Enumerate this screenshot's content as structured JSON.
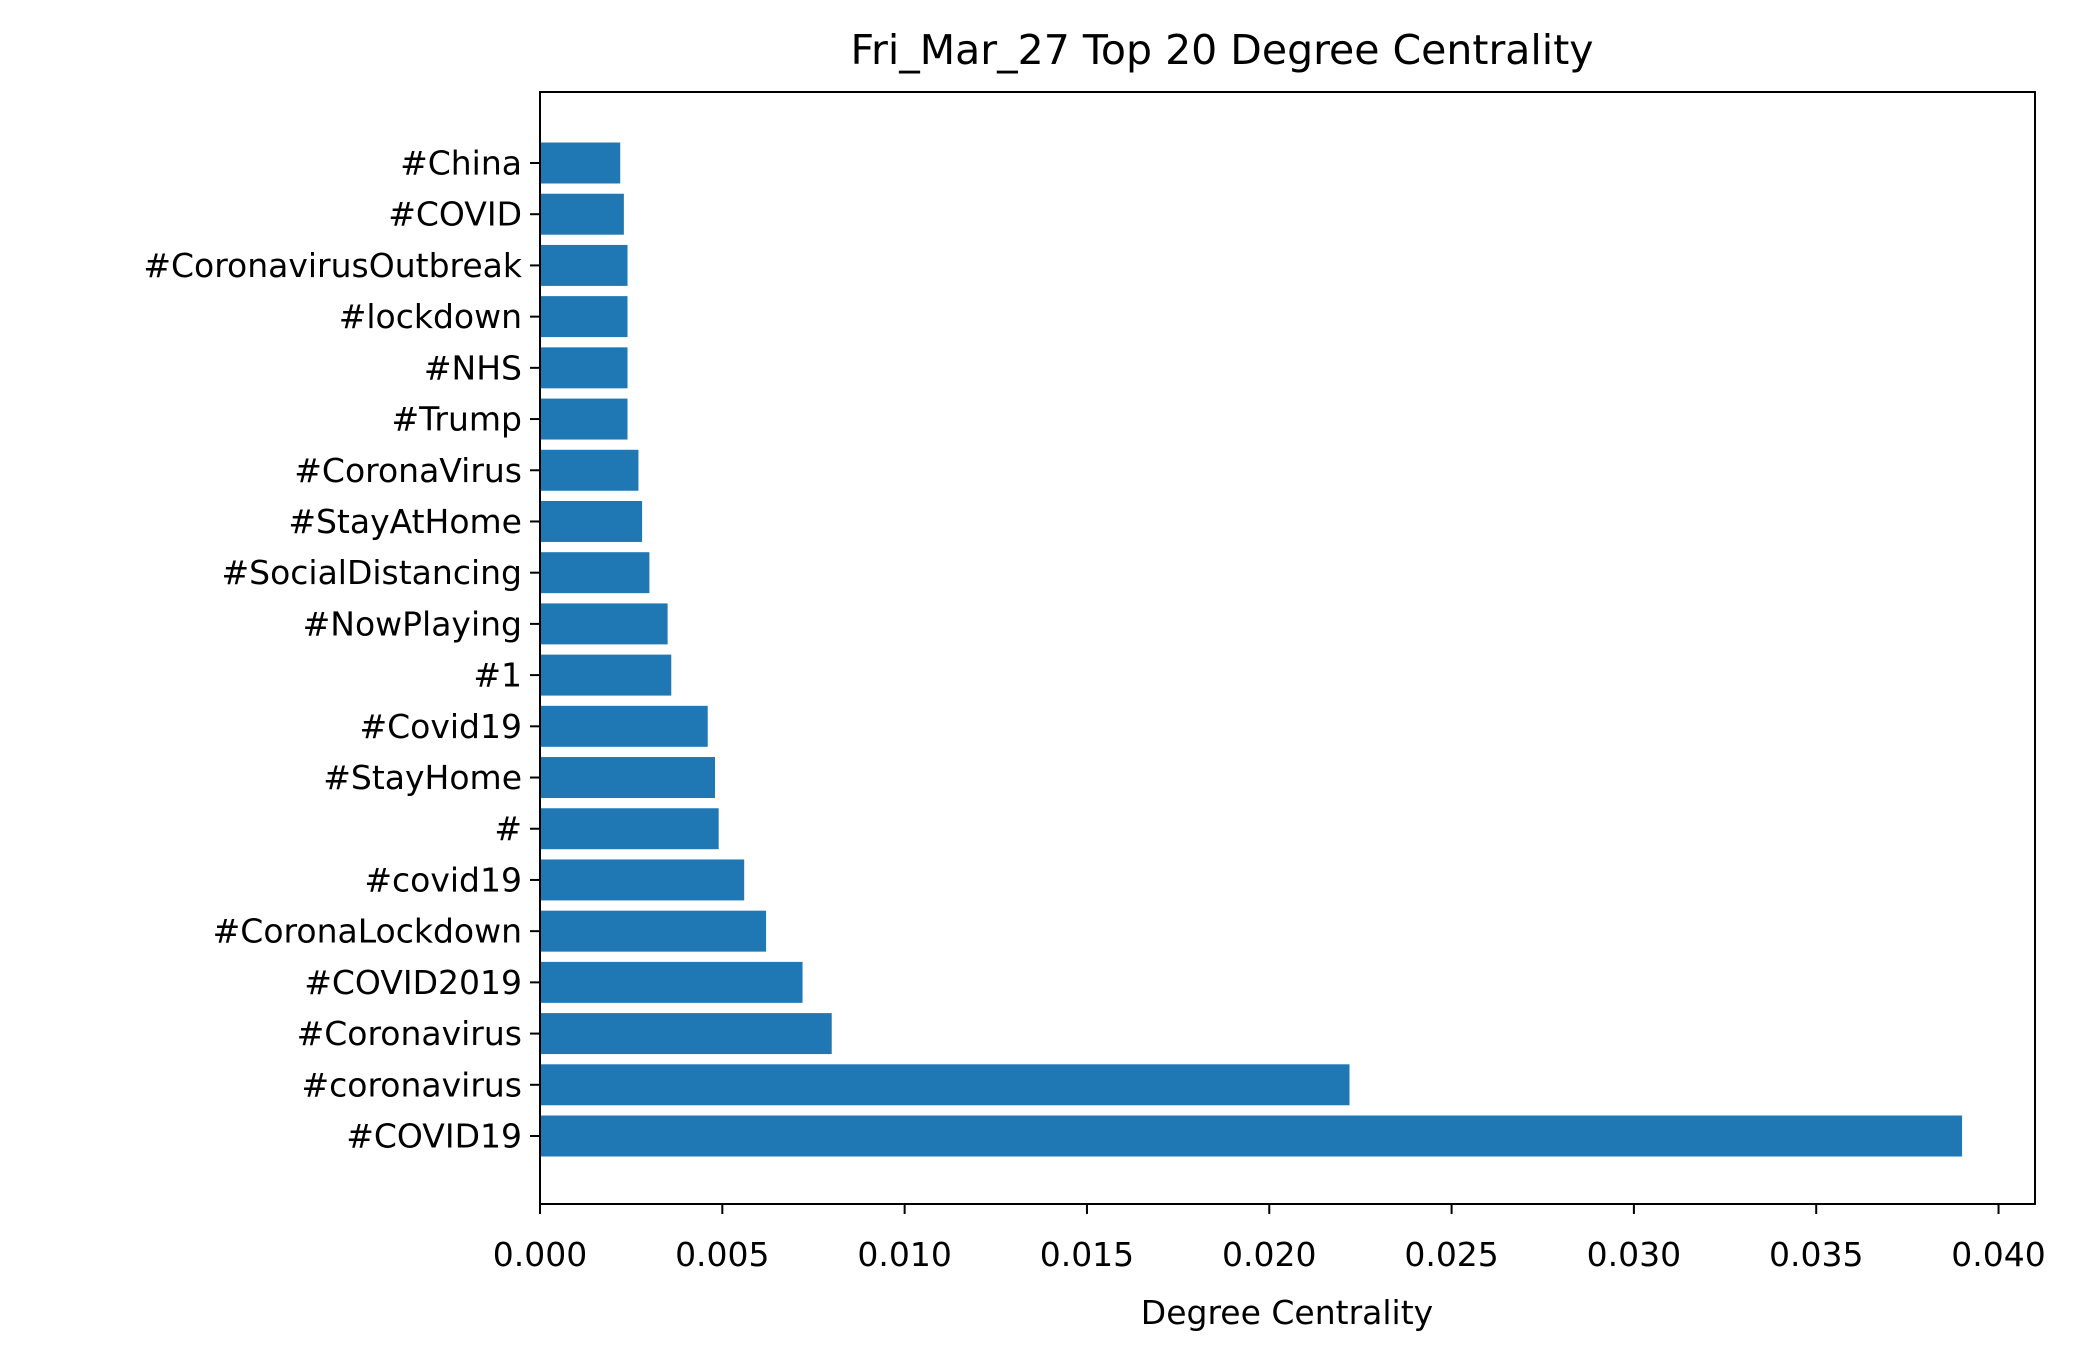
{
  "chart_data": {
    "type": "bar",
    "orientation": "horizontal",
    "title": "Fri_Mar_27 Top 20 Degree Centrality",
    "xlabel": "Degree Centrality",
    "ylabel": "",
    "xlim": [
      0.0,
      0.041
    ],
    "xticks": [
      "0.000",
      "0.005",
      "0.010",
      "0.015",
      "0.020",
      "0.025",
      "0.030",
      "0.035",
      "0.040"
    ],
    "grid": false,
    "legend": "none",
    "bar_color": "#1f77b4",
    "categories": [
      "#COVID19",
      "#coronavirus",
      "#Coronavirus",
      "#COVID2019",
      "#CoronaLockdown",
      "#covid19",
      "#",
      "#StayHome",
      "#Covid19",
      "#1",
      "#NowPlaying",
      "#SocialDistancing",
      "#StayAtHome",
      "#CoronaVirus",
      "#Trump",
      "#NHS",
      "#lockdown",
      "#CoronavirusOutbreak",
      "#COVID",
      "#China"
    ],
    "values": [
      0.039,
      0.0222,
      0.008,
      0.0072,
      0.0062,
      0.0056,
      0.0049,
      0.0048,
      0.0046,
      0.0036,
      0.0035,
      0.003,
      0.0028,
      0.0027,
      0.0024,
      0.0024,
      0.0024,
      0.0024,
      0.0023,
      0.0022
    ]
  }
}
